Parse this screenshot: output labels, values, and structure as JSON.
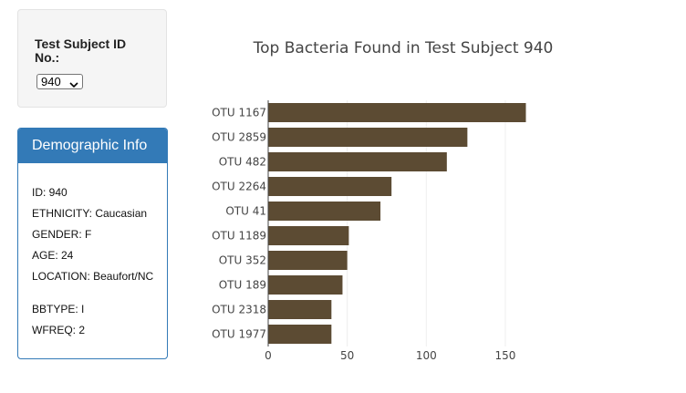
{
  "selector": {
    "label": "Test Subject ID No.:",
    "selected_value": "940"
  },
  "demographics": {
    "heading": "Demographic Info",
    "rows": [
      "ID: 940",
      "ETHNICITY: Caucasian",
      "GENDER: F",
      "AGE: 24",
      "LOCATION: Beaufort/NC",
      "BBTYPE: I",
      "WFREQ: 2"
    ]
  },
  "colors": {
    "bar": "#5c4b33",
    "panel_heading": "#337ab7"
  },
  "chart_data": {
    "type": "bar",
    "orientation": "horizontal",
    "title": "Top Bacteria Found in Test Subject 940",
    "categories": [
      "OTU 1167",
      "OTU 2859",
      "OTU 482",
      "OTU 2264",
      "OTU 41",
      "OTU 1189",
      "OTU 352",
      "OTU 189",
      "OTU 2318",
      "OTU 1977"
    ],
    "values": [
      163,
      126,
      113,
      78,
      71,
      51,
      50,
      47,
      40,
      40
    ],
    "xlabel": "",
    "ylabel": "",
    "xlim": [
      0,
      170
    ],
    "xticks": [
      0,
      50,
      100,
      150
    ],
    "grid": true
  }
}
